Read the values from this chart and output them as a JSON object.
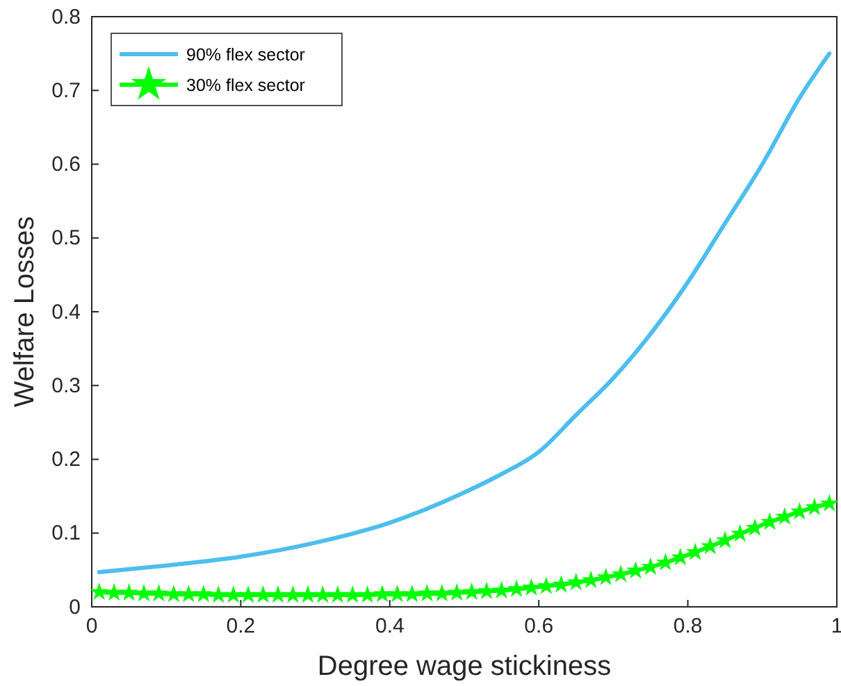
{
  "chart_data": {
    "type": "line",
    "xlabel": "Degree wage stickiness",
    "ylabel": "Welfare Losses",
    "xlim": [
      0,
      1
    ],
    "ylim": [
      0,
      0.8
    ],
    "xticks": [
      0,
      0.2,
      0.4,
      0.6,
      0.8,
      1
    ],
    "yticks": [
      0,
      0.1,
      0.2,
      0.3,
      0.4,
      0.5,
      0.6,
      0.7,
      0.8
    ],
    "grid": false,
    "legend": "top left",
    "line_style": "solid",
    "series": [
      {
        "name": "90% flex sector",
        "color": "#4dbeee",
        "marker": "none",
        "x": [
          0.01,
          0.1,
          0.2,
          0.3,
          0.4,
          0.5,
          0.55,
          0.6,
          0.65,
          0.7,
          0.75,
          0.8,
          0.85,
          0.9,
          0.95,
          0.99
        ],
        "values": [
          0.047,
          0.056,
          0.068,
          0.087,
          0.114,
          0.155,
          0.18,
          0.21,
          0.26,
          0.31,
          0.37,
          0.44,
          0.52,
          0.6,
          0.69,
          0.75
        ]
      },
      {
        "name": "30% flex sector",
        "color": "#00ff00",
        "marker": "star",
        "x": [
          0.01,
          0.03,
          0.05,
          0.07,
          0.09,
          0.11,
          0.13,
          0.15,
          0.17,
          0.19,
          0.21,
          0.23,
          0.25,
          0.27,
          0.29,
          0.31,
          0.33,
          0.35,
          0.37,
          0.39,
          0.41,
          0.43,
          0.45,
          0.47,
          0.49,
          0.51,
          0.53,
          0.55,
          0.57,
          0.59,
          0.61,
          0.63,
          0.65,
          0.67,
          0.69,
          0.71,
          0.73,
          0.75,
          0.77,
          0.79,
          0.81,
          0.83,
          0.85,
          0.87,
          0.89,
          0.91,
          0.93,
          0.95,
          0.97,
          0.99
        ],
        "values": [
          0.02,
          0.019,
          0.019,
          0.018,
          0.018,
          0.017,
          0.017,
          0.017,
          0.016,
          0.016,
          0.016,
          0.016,
          0.016,
          0.016,
          0.016,
          0.016,
          0.016,
          0.016,
          0.016,
          0.017,
          0.017,
          0.017,
          0.018,
          0.018,
          0.019,
          0.02,
          0.021,
          0.022,
          0.024,
          0.026,
          0.028,
          0.03,
          0.033,
          0.036,
          0.04,
          0.044,
          0.049,
          0.054,
          0.06,
          0.067,
          0.074,
          0.082,
          0.09,
          0.099,
          0.107,
          0.115,
          0.122,
          0.129,
          0.135,
          0.14
        ]
      }
    ]
  }
}
